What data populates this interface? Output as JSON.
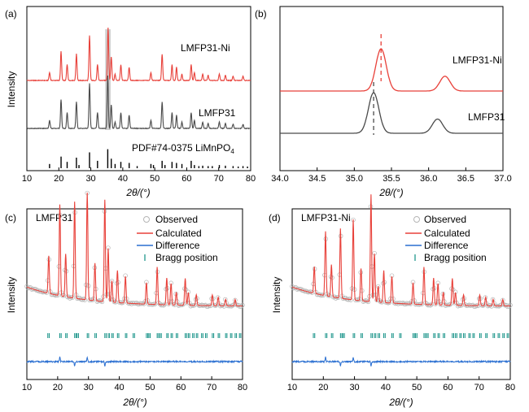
{
  "panels": [
    {
      "id": "a",
      "label": "(a)"
    },
    {
      "id": "b",
      "label": "(b)"
    },
    {
      "id": "c",
      "label": "(c)"
    },
    {
      "id": "d",
      "label": "(d)"
    }
  ],
  "colors": {
    "red": "#e8413a",
    "gray": "#4a4a4a",
    "blue": "#2a6fd1",
    "teal": "#0f8f84",
    "highlight": "#cfcfcf",
    "observed": "#b5b5b5"
  },
  "chart_data": [
    {
      "id": "a",
      "type": "line",
      "title": "",
      "xlabel": "2θ/(°)",
      "ylabel": "Intensity",
      "xlim": [
        10,
        80
      ],
      "xticks": [
        10,
        20,
        30,
        40,
        50,
        60,
        70,
        80
      ],
      "highlight_band_x": [
        34.5,
        36.2
      ],
      "series": [
        {
          "name": "LMFP31-Ni",
          "color": "#e8413a",
          "peaks": [
            [
              17.1,
              0.15
            ],
            [
              20.7,
              0.55
            ],
            [
              22.6,
              0.3
            ],
            [
              25.5,
              0.5
            ],
            [
              29.6,
              0.85
            ],
            [
              32.1,
              0.3
            ],
            [
              35.4,
              1.0
            ],
            [
              36.4,
              0.45
            ],
            [
              37.6,
              0.12
            ],
            [
              39.4,
              0.3
            ],
            [
              42.0,
              0.25
            ],
            [
              48.8,
              0.15
            ],
            [
              52.3,
              0.5
            ],
            [
              55.4,
              0.3
            ],
            [
              56.8,
              0.25
            ],
            [
              58.5,
              0.12
            ],
            [
              61.4,
              0.3
            ],
            [
              62.4,
              0.15
            ],
            [
              65.0,
              0.12
            ],
            [
              66.7,
              0.1
            ],
            [
              70.2,
              0.12
            ],
            [
              72.1,
              0.1
            ],
            [
              74.5,
              0.08
            ],
            [
              77.6,
              0.08
            ]
          ]
        },
        {
          "name": "LMFP31",
          "color": "#4a4a4a",
          "peaks": [
            [
              17.1,
              0.15
            ],
            [
              20.7,
              0.55
            ],
            [
              22.6,
              0.3
            ],
            [
              25.5,
              0.5
            ],
            [
              29.6,
              0.85
            ],
            [
              32.1,
              0.3
            ],
            [
              35.3,
              1.0
            ],
            [
              36.4,
              0.45
            ],
            [
              37.6,
              0.12
            ],
            [
              39.4,
              0.3
            ],
            [
              42.0,
              0.25
            ],
            [
              48.8,
              0.15
            ],
            [
              52.3,
              0.5
            ],
            [
              55.4,
              0.3
            ],
            [
              56.8,
              0.25
            ],
            [
              58.5,
              0.12
            ],
            [
              61.4,
              0.3
            ],
            [
              62.4,
              0.15
            ],
            [
              65.0,
              0.12
            ],
            [
              66.7,
              0.1
            ],
            [
              70.2,
              0.12
            ],
            [
              72.1,
              0.1
            ],
            [
              74.5,
              0.08
            ],
            [
              77.6,
              0.08
            ]
          ]
        }
      ],
      "reference": {
        "name": "PDF#74-0375 LiMnPO",
        "subscript": "4",
        "sticks": [
          [
            17.1,
            0.2
          ],
          [
            20.7,
            0.55
          ],
          [
            22.6,
            0.3
          ],
          [
            25.5,
            0.5
          ],
          [
            26.3,
            0.15
          ],
          [
            29.6,
            0.75
          ],
          [
            32.1,
            0.35
          ],
          [
            35.3,
            0.9
          ],
          [
            36.4,
            0.45
          ],
          [
            37.6,
            0.2
          ],
          [
            39.4,
            0.3
          ],
          [
            42.0,
            0.25
          ],
          [
            44.5,
            0.1
          ],
          [
            48.8,
            0.2
          ],
          [
            49.6,
            0.15
          ],
          [
            52.3,
            0.35
          ],
          [
            53.2,
            0.15
          ],
          [
            55.4,
            0.3
          ],
          [
            56.8,
            0.25
          ],
          [
            58.5,
            0.2
          ],
          [
            61.4,
            0.35
          ],
          [
            62.4,
            0.15
          ],
          [
            63.8,
            0.1
          ],
          [
            65.0,
            0.12
          ],
          [
            66.7,
            0.1
          ],
          [
            68.0,
            0.1
          ],
          [
            70.2,
            0.15
          ],
          [
            72.1,
            0.12
          ],
          [
            74.5,
            0.1
          ],
          [
            76.1,
            0.08
          ],
          [
            77.6,
            0.1
          ],
          [
            79.0,
            0.08
          ]
        ]
      },
      "labels": [
        "LMFP31-Ni",
        "LMFP31",
        "PDF#74-0375 LiMnPO"
      ]
    },
    {
      "id": "b",
      "type": "line",
      "title": "",
      "xlabel": "2θ/(°)",
      "ylabel": "",
      "xlim": [
        34.0,
        37.0
      ],
      "xticks": [
        "34.0",
        "34.5",
        "35.0",
        "35.5",
        "36.0",
        "36.5",
        "37.0"
      ],
      "series": [
        {
          "name": "LMFP31-Ni",
          "color": "#e8413a",
          "peaks": [
            [
              35.36,
              1.0
            ],
            [
              36.22,
              0.35
            ]
          ],
          "marker": 35.36
        },
        {
          "name": "LMFP31",
          "color": "#4a4a4a",
          "peaks": [
            [
              35.26,
              1.0
            ],
            [
              36.12,
              0.35
            ]
          ],
          "marker": 35.26
        }
      ],
      "labels": [
        "LMFP31-Ni",
        "LMFP31"
      ]
    },
    {
      "id": "c",
      "type": "scatter",
      "title": "LMFP31",
      "xlabel": "2θ/(°)",
      "ylabel": "Intensity",
      "xlim": [
        10,
        80
      ],
      "xticks": [
        10,
        20,
        30,
        40,
        50,
        60,
        70,
        80
      ],
      "legend": [
        "Observed",
        "Calculated",
        "Difference",
        "Bragg position"
      ],
      "peaks": [
        [
          17.1,
          0.35
        ],
        [
          20.7,
          0.85
        ],
        [
          22.6,
          0.4
        ],
        [
          25.5,
          0.9
        ],
        [
          29.6,
          1.0
        ],
        [
          32.1,
          0.35
        ],
        [
          35.3,
          0.95
        ],
        [
          36.4,
          0.5
        ],
        [
          37.6,
          0.2
        ],
        [
          39.4,
          0.3
        ],
        [
          42.0,
          0.25
        ],
        [
          48.8,
          0.2
        ],
        [
          52.3,
          0.35
        ],
        [
          55.4,
          0.25
        ],
        [
          56.8,
          0.2
        ],
        [
          58.5,
          0.12
        ],
        [
          61.4,
          0.25
        ],
        [
          62.4,
          0.12
        ],
        [
          65.0,
          0.1
        ],
        [
          70.2,
          0.1
        ],
        [
          72.1,
          0.08
        ],
        [
          74.5,
          0.06
        ],
        [
          77.6,
          0.06
        ]
      ],
      "bragg": [
        16.8,
        20.7,
        22.6,
        25.5,
        26.3,
        29.6,
        32.1,
        35.3,
        36.4,
        37.6,
        39.4,
        42.0,
        44.5,
        48.8,
        49.6,
        52.3,
        53.2,
        55.4,
        56.8,
        58.5,
        61.4,
        62.4,
        63.8,
        65.0,
        66.7,
        68.0,
        70.2,
        72.1,
        74.5,
        76.1,
        77.6,
        79.0
      ]
    },
    {
      "id": "d",
      "type": "scatter",
      "title": "LMFP31-Ni",
      "xlabel": "2θ/(°)",
      "ylabel": "Intensity",
      "xlim": [
        10,
        80
      ],
      "xticks": [
        10,
        20,
        30,
        40,
        50,
        60,
        70,
        80
      ],
      "legend": [
        "Observed",
        "Calculated",
        "Difference",
        "Bragg position"
      ],
      "peaks": [
        [
          17.1,
          0.25
        ],
        [
          20.7,
          0.6
        ],
        [
          22.6,
          0.3
        ],
        [
          25.5,
          0.65
        ],
        [
          29.6,
          0.75
        ],
        [
          32.1,
          0.3
        ],
        [
          35.3,
          1.0
        ],
        [
          36.4,
          0.45
        ],
        [
          37.6,
          0.15
        ],
        [
          39.4,
          0.3
        ],
        [
          42.0,
          0.25
        ],
        [
          48.8,
          0.2
        ],
        [
          52.3,
          0.35
        ],
        [
          55.4,
          0.25
        ],
        [
          56.8,
          0.2
        ],
        [
          58.5,
          0.12
        ],
        [
          61.4,
          0.25
        ],
        [
          62.4,
          0.12
        ],
        [
          65.0,
          0.1
        ],
        [
          70.2,
          0.1
        ],
        [
          72.1,
          0.08
        ],
        [
          74.5,
          0.06
        ],
        [
          77.6,
          0.06
        ]
      ],
      "bragg": [
        16.8,
        20.7,
        22.6,
        25.5,
        26.3,
        29.6,
        32.1,
        35.3,
        36.4,
        37.6,
        39.4,
        42.0,
        44.5,
        48.8,
        49.6,
        52.3,
        53.2,
        55.4,
        56.8,
        58.5,
        61.4,
        62.4,
        63.8,
        65.0,
        66.7,
        68.0,
        70.2,
        72.1,
        74.5,
        76.1,
        77.6,
        79.0
      ]
    }
  ]
}
